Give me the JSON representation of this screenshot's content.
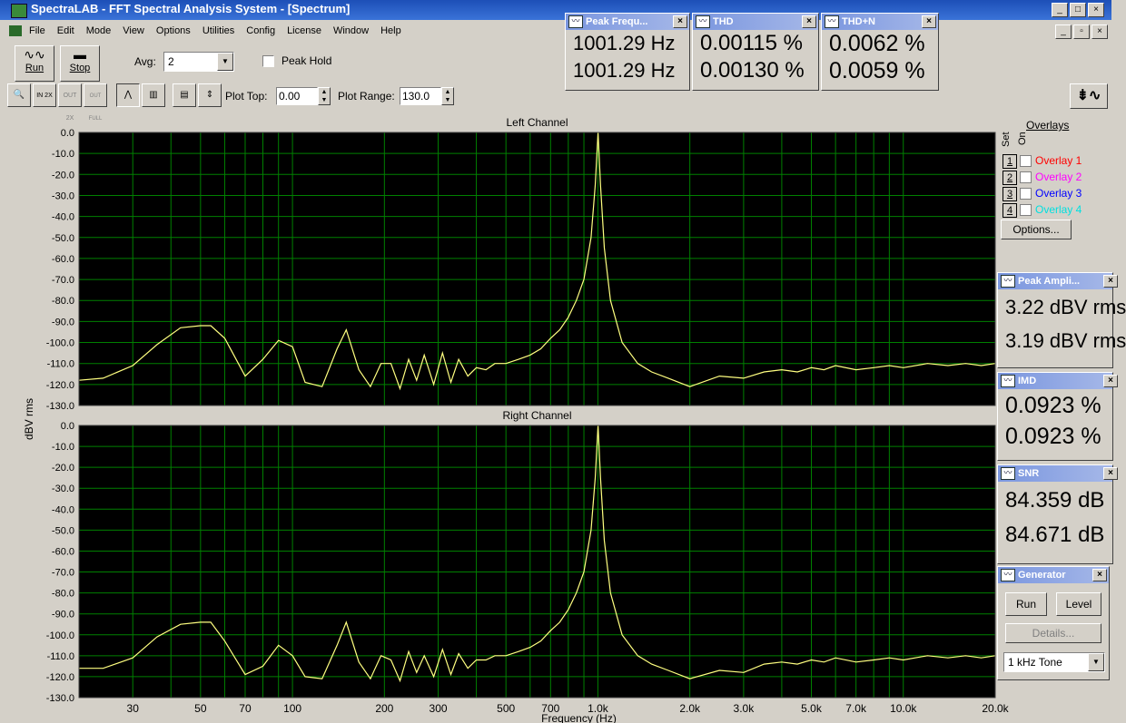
{
  "window": {
    "title": "SpectraLAB - FFT Spectral Analysis System - [Spectrum]"
  },
  "menu": [
    "File",
    "Edit",
    "Mode",
    "View",
    "Options",
    "Utilities",
    "Config",
    "License",
    "Window",
    "Help"
  ],
  "toolbar": {
    "run_label": "Run",
    "stop_label": "Stop",
    "avg_label": "Avg:",
    "avg_value": "2",
    "peak_hold_label": "Peak Hold",
    "plot_top_label": "Plot Top:",
    "plot_top_value": "0.00",
    "plot_range_label": "Plot Range:",
    "plot_range_value": "130.0",
    "zoom_in_label": "IN 2X",
    "zoom_out_label": "OUT 2X",
    "zoom_full_label": "OUT FULL"
  },
  "meters": {
    "peak_freq": {
      "title": "Peak Frequ...",
      "values": [
        "1001.29 Hz",
        "1001.29 Hz"
      ]
    },
    "thd": {
      "title": "THD",
      "values": [
        "0.00115 %",
        "0.00130 %"
      ]
    },
    "thdn": {
      "title": "THD+N",
      "values": [
        "0.0062 %",
        "0.0059 %"
      ]
    },
    "peak_amp": {
      "title": "Peak Ampli...",
      "values": [
        "3.22 dBV rms",
        "3.19 dBV rms"
      ]
    },
    "imd": {
      "title": "IMD",
      "values": [
        "0.0923 %",
        "0.0923 %"
      ]
    },
    "snr": {
      "title": "SNR",
      "values": [
        "84.359 dB",
        "84.671 dB"
      ]
    },
    "generator": {
      "title": "Generator",
      "run_label": "Run",
      "level_label": "Level",
      "details_label": "Details...",
      "tone_value": "1 kHz Tone"
    }
  },
  "overlays": {
    "title": "Overlays",
    "set_label": "Set",
    "on_label": "On",
    "items": [
      {
        "num": "1",
        "label": "Overlay 1",
        "color": "#ff0000"
      },
      {
        "num": "2",
        "label": "Overlay 2",
        "color": "#ff00ff"
      },
      {
        "num": "3",
        "label": "Overlay 3",
        "color": "#0000ff"
      },
      {
        "num": "4",
        "label": "Overlay 4",
        "color": "#00e0e0"
      }
    ],
    "options_label": "Options..."
  },
  "chart_data": [
    {
      "type": "line",
      "title": "Left Channel",
      "xlabel": "Frequency (Hz)",
      "ylabel": "dBV rms",
      "x_scale": "log",
      "xlim": [
        20,
        20000
      ],
      "ylim": [
        -130,
        0
      ],
      "grid": true,
      "line_color": "#ffff80",
      "background": "#000000",
      "grid_color": "#008000",
      "y_ticks": [
        "0.0",
        "-10.0",
        "-20.0",
        "-30.0",
        "-40.0",
        "-50.0",
        "-60.0",
        "-70.0",
        "-80.0",
        "-90.0",
        "-100.0",
        "-110.0",
        "-120.0",
        "-130.0"
      ],
      "x_ticks": [
        {
          "v": 30,
          "label": "30"
        },
        {
          "v": 50,
          "label": "50"
        },
        {
          "v": 70,
          "label": "70"
        },
        {
          "v": 100,
          "label": "100"
        },
        {
          "v": 200,
          "label": "200"
        },
        {
          "v": 300,
          "label": "300"
        },
        {
          "v": 500,
          "label": "500"
        },
        {
          "v": 700,
          "label": "700"
        },
        {
          "v": 1000,
          "label": "1.0k"
        },
        {
          "v": 2000,
          "label": "2.0k"
        },
        {
          "v": 3000,
          "label": "3.0k"
        },
        {
          "v": 5000,
          "label": "5.0k"
        },
        {
          "v": 7000,
          "label": "7.0k"
        },
        {
          "v": 10000,
          "label": "10.0k"
        },
        {
          "v": 20000,
          "label": "20.0k"
        }
      ],
      "series": [
        {
          "x": [
            20,
            24,
            30,
            36,
            43,
            50,
            54,
            60,
            70,
            80,
            90,
            100,
            110,
            125,
            140,
            150,
            165,
            180,
            195,
            210,
            225,
            240,
            255,
            270,
            290,
            310,
            330,
            350,
            375,
            400,
            430,
            460,
            500,
            550,
            600,
            650,
            700,
            750,
            800,
            850,
            900,
            950,
            980,
            1001,
            1020,
            1050,
            1100,
            1200,
            1350,
            1500,
            1700,
            2000,
            2500,
            3000,
            3500,
            4000,
            4500,
            5000,
            5500,
            6000,
            7000,
            8000,
            9000,
            10000,
            12000,
            14000,
            16000,
            18000,
            20000
          ],
          "y": [
            -118,
            -117,
            -111,
            -101,
            -93,
            -92,
            -92,
            -98,
            -116,
            -108,
            -99,
            -102,
            -119,
            -121,
            -103,
            -94,
            -113,
            -121,
            -110,
            -110,
            -122,
            -108,
            -118,
            -106,
            -120,
            -105,
            -119,
            -108,
            -116,
            -112,
            -113,
            -110,
            -110,
            -108,
            -106,
            -103,
            -98,
            -94,
            -88,
            -80,
            -70,
            -50,
            -25,
            0,
            -25,
            -55,
            -80,
            -100,
            -110,
            -114,
            -117,
            -121,
            -116,
            -117,
            -114,
            -113,
            -114,
            -112,
            -113,
            -111,
            -113,
            -112,
            -111,
            -112,
            -110,
            -111,
            -110,
            -111,
            -110
          ]
        }
      ]
    },
    {
      "type": "line",
      "title": "Right Channel",
      "xlabel": "Frequency (Hz)",
      "ylabel": "dBV rms",
      "x_scale": "log",
      "xlim": [
        20,
        20000
      ],
      "ylim": [
        -130,
        0
      ],
      "grid": true,
      "line_color": "#ffff80",
      "background": "#000000",
      "grid_color": "#008000",
      "y_ticks": [
        "0.0",
        "-10.0",
        "-20.0",
        "-30.0",
        "-40.0",
        "-50.0",
        "-60.0",
        "-70.0",
        "-80.0",
        "-90.0",
        "-100.0",
        "-110.0",
        "-120.0",
        "-130.0"
      ],
      "x_ticks": [
        {
          "v": 30,
          "label": "30"
        },
        {
          "v": 50,
          "label": "50"
        },
        {
          "v": 70,
          "label": "70"
        },
        {
          "v": 100,
          "label": "100"
        },
        {
          "v": 200,
          "label": "200"
        },
        {
          "v": 300,
          "label": "300"
        },
        {
          "v": 500,
          "label": "500"
        },
        {
          "v": 700,
          "label": "700"
        },
        {
          "v": 1000,
          "label": "1.0k"
        },
        {
          "v": 2000,
          "label": "2.0k"
        },
        {
          "v": 3000,
          "label": "3.0k"
        },
        {
          "v": 5000,
          "label": "5.0k"
        },
        {
          "v": 7000,
          "label": "7.0k"
        },
        {
          "v": 10000,
          "label": "10.0k"
        },
        {
          "v": 20000,
          "label": "20.0k"
        }
      ],
      "series": [
        {
          "x": [
            20,
            24,
            30,
            36,
            43,
            50,
            54,
            60,
            70,
            80,
            90,
            100,
            110,
            125,
            140,
            150,
            165,
            180,
            195,
            210,
            225,
            240,
            255,
            270,
            290,
            310,
            330,
            350,
            375,
            400,
            430,
            460,
            500,
            550,
            600,
            650,
            700,
            750,
            800,
            850,
            900,
            950,
            980,
            1001,
            1020,
            1050,
            1100,
            1200,
            1350,
            1500,
            1700,
            2000,
            2500,
            3000,
            3500,
            4000,
            4500,
            5000,
            5500,
            6000,
            7000,
            8000,
            9000,
            10000,
            12000,
            14000,
            16000,
            18000,
            20000
          ],
          "y": [
            -116,
            -116,
            -111,
            -101,
            -95,
            -94,
            -94,
            -103,
            -119,
            -115,
            -105,
            -110,
            -120,
            -121,
            -105,
            -94,
            -113,
            -121,
            -110,
            -112,
            -122,
            -108,
            -118,
            -110,
            -120,
            -107,
            -119,
            -109,
            -116,
            -112,
            -112,
            -110,
            -110,
            -108,
            -106,
            -103,
            -98,
            -94,
            -88,
            -80,
            -70,
            -50,
            -25,
            0,
            -25,
            -55,
            -80,
            -100,
            -110,
            -114,
            -117,
            -121,
            -117,
            -118,
            -114,
            -113,
            -114,
            -112,
            -113,
            -111,
            -113,
            -112,
            -111,
            -112,
            -110,
            -111,
            -110,
            -111,
            -110
          ]
        }
      ]
    }
  ]
}
